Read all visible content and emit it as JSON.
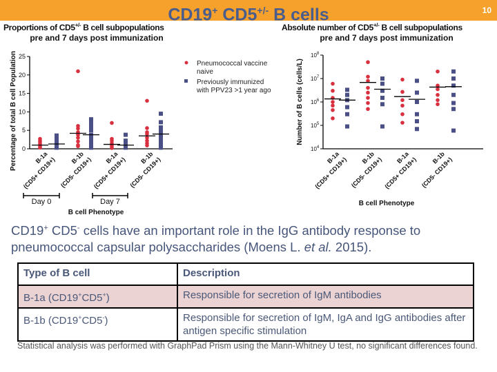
{
  "header": {
    "title_main": "CD19",
    "title_sup1": "+",
    "title_mid": " CD5",
    "title_sup2": "+/-",
    "title_end": " B cells",
    "page_number": "10",
    "bar_color": "#f6a12b"
  },
  "colors": {
    "naive": "#d9303f",
    "immunized": "#4a4f86",
    "median": "#000000"
  },
  "chart_data": [
    {
      "type": "scatter",
      "title_line1": "Proportions of CD5",
      "title_sup": "+/-",
      "title_line1_end": " B cell subpopulations",
      "title_line2": "pre and 7 days post immunization",
      "ylabel": "Percentage of total B cell Population",
      "xlabel": "B cell Phenotype",
      "ylim": [
        0,
        25
      ],
      "yticks": [
        "0",
        "5",
        "10",
        "15",
        "20",
        "25"
      ],
      "yscale": "linear",
      "legend": [
        "Pneumococcal vaccine",
        "naive",
        "Previously immunized",
        "with PPV23 >1 year ago"
      ],
      "legend_placement": "right",
      "categories": [
        {
          "l1": "B-1a",
          "l2": "(CD5+ CD19+)"
        },
        {
          "l1": "B-1b",
          "l2": "(CD5- CD19+)"
        },
        {
          "l1": "B-1a",
          "l2": "(CD5+ CD19+)"
        },
        {
          "l1": "B-1b",
          "l2": "(CD5- CD19+)"
        }
      ],
      "groups": [
        "Day 0",
        "Day 7"
      ],
      "series": [
        {
          "name": "Pneumococcal vaccine naive",
          "values": [
            [
              0.3,
              0.6,
              1,
              1.3,
              1.8,
              2.2,
              2.7
            ],
            [
              0.7,
              1,
              2,
              3,
              3.8,
              4.5,
              5.5,
              6.2,
              21
            ],
            [
              0.2,
              0.6,
              1,
              1.5,
              2.2,
              2.7,
              7
            ],
            [
              0.9,
              1.5,
              2.2,
              3,
              4,
              4.5,
              5.6,
              13
            ]
          ],
          "medians": [
            1.0,
            4.2,
            1.2,
            3.5
          ]
        },
        {
          "name": "Previously immunized with PPV23 >1 year ago",
          "values": [
            [
              0.3,
              0.8,
              1.5,
              2,
              2.8,
              3.6
            ],
            [
              0.3,
              1,
              2,
              3,
              3.8,
              5,
              6,
              7,
              8
            ],
            [
              0.3,
              0.8,
              1.5,
              2.2,
              3.8
            ],
            [
              0.3,
              1,
              2,
              3,
              4,
              5,
              5.8,
              7.2,
              9.5
            ]
          ],
          "medians": [
            1.3,
            3.8,
            1.0,
            4.0
          ]
        }
      ]
    },
    {
      "type": "scatter",
      "title_line1": "Absolute number of CD5",
      "title_sup": "+/-",
      "title_line1_end": " B cell subpopulations",
      "title_line2": "pre and 7 days post immunization",
      "ylabel": "Number of B cells (cells/L)",
      "xlabel": "B cell Phenotype",
      "ylim": [
        10000,
        100000000
      ],
      "yscale": "log",
      "yticks": [
        "4",
        "5",
        "6",
        "7",
        "8"
      ],
      "categories": [
        {
          "l1": "B-1a",
          "l2": "(CD5+ CD19+)"
        },
        {
          "l1": "B-1b",
          "l2": "(CD5- CD19+)"
        },
        {
          "l1": "B-1a",
          "l2": "(CD5+ CD19+)"
        },
        {
          "l1": "B-1b",
          "l2": "(CD5- CD19+)"
        }
      ],
      "series": [
        {
          "name": "Pneumococcal vaccine naive",
          "values": [
            [
              200000,
              450000,
              700000,
              1000000,
              1500000,
              3000000,
              6000000
            ],
            [
              500000,
              900000,
              1500000,
              2500000,
              4000000,
              8000000,
              12000000,
              50000000
            ],
            [
              130000,
              300000,
              700000,
              1200000,
              2700000,
              9000000
            ],
            [
              800000,
              1200000,
              2000000,
              3500000,
              5000000,
              20000000
            ]
          ],
          "medians": [
            1350000,
            6800000,
            1700000,
            4300000
          ]
        },
        {
          "name": "Previously immunized with PPV23 >1 year ago",
          "values": [
            [
              90000,
              300000,
              600000,
              1200000,
              2000000,
              3300000
            ],
            [
              90000,
              800000,
              1500000,
              3000000,
              6000000,
              10000000
            ],
            [
              70000,
              150000,
              300000,
              1000000,
              2500000,
              8000000
            ],
            [
              60000,
              500000,
              900000,
              2000000,
              5000000,
              10000000,
              20000000
            ]
          ],
          "medians": [
            1200000,
            3500000,
            1300000,
            4500000
          ]
        }
      ]
    }
  ],
  "paragraph": {
    "a": "CD19",
    "sup_a": "+",
    "b": " CD5",
    "sup_b": "-",
    "c": " cells have an important role in the IgG antibody response to pneumococcal capsular polysaccharides (Moens L. ",
    "em": "et al.",
    "d": " 2015)."
  },
  "table": {
    "headers": [
      "Type of B cell",
      "Description"
    ],
    "rows": [
      {
        "type": "B-1a (CD19",
        "s1": "+",
        "mid": "CD5",
        "s2": "+",
        "end": ")",
        "desc": "Responsible for secretion of IgM antibodies"
      },
      {
        "type": "B-1b (CD19",
        "s1": "+",
        "mid": "CD5",
        "s2": "-",
        "end": ")",
        "desc": "Responsible for secretion of IgM, IgA and IgG antibodies after antigen specific stimulation"
      }
    ]
  },
  "footnote": "Statistical analysis was performed with GraphPad Prism using the Mann-Whitney U test, no significant differences found."
}
